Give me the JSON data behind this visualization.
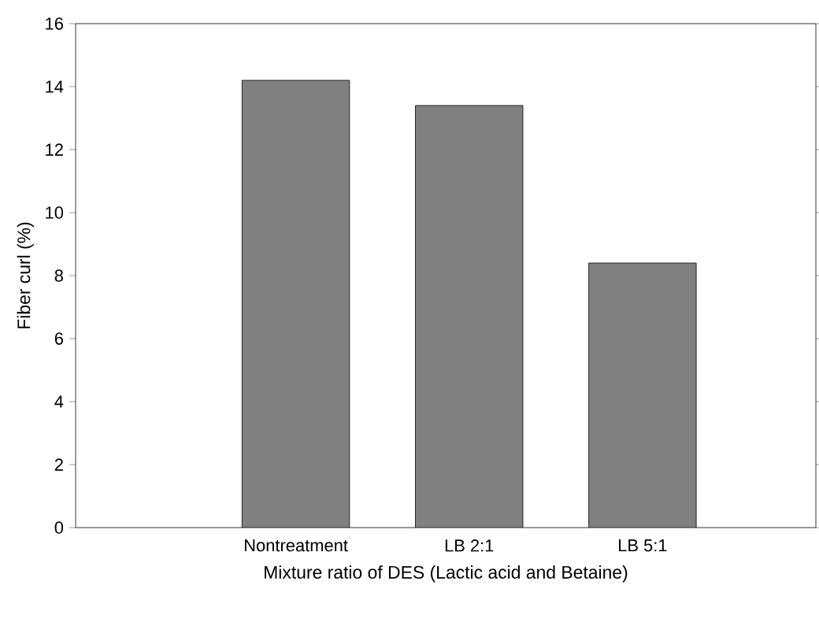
{
  "chart_data": {
    "type": "bar",
    "xlabel": "Mixture ratio of DES (Lactic acid and Betaine)",
    "ylabel": "Fiber curl (%)",
    "categories": [
      "Nontreatment",
      "LB 2:1",
      "LB 5:1"
    ],
    "values": [
      14.2,
      13.4,
      8.4
    ],
    "color": "#808080",
    "ylim": [
      0,
      16
    ],
    "yticks": [
      0,
      2,
      4,
      6,
      8,
      10,
      12,
      14,
      16
    ]
  }
}
